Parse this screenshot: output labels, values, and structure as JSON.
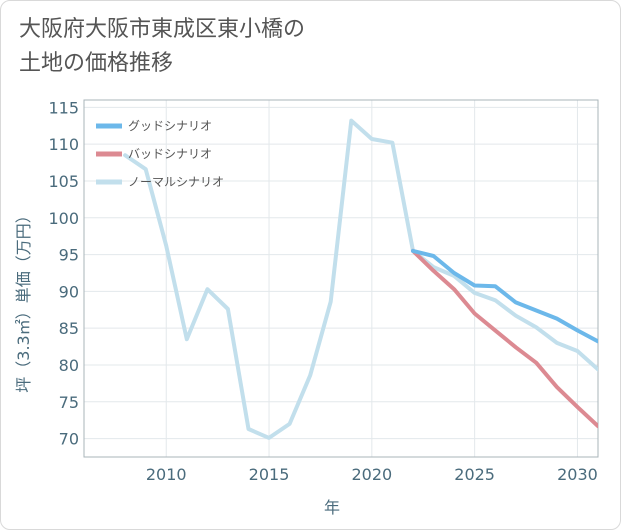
{
  "title_lines": [
    "大阪府大阪市東成区東小橋の",
    "土地の価格推移"
  ],
  "chart_data": {
    "type": "line",
    "title": "大阪府大阪市東成区東小橋の土地の価格推移",
    "xlabel": "年",
    "ylabel": "坪（3.3㎡）単価（万円）",
    "xlim": [
      2006,
      2031
    ],
    "ylim": [
      67.5,
      116
    ],
    "xticks": [
      2010,
      2015,
      2020,
      2025,
      2030
    ],
    "yticks": [
      70,
      75,
      80,
      85,
      90,
      95,
      100,
      105,
      110,
      115
    ],
    "grid": true,
    "legend_position": "top-left",
    "series": [
      {
        "name": "グッドシナリオ",
        "color": "#6cb8ea",
        "x": [
          2022,
          2023,
          2024,
          2025,
          2026,
          2027,
          2028,
          2029,
          2030,
          2031
        ],
        "values": [
          95.5,
          94.8,
          92.5,
          90.8,
          90.7,
          88.5,
          87.4,
          86.3,
          84.7,
          83.2
        ]
      },
      {
        "name": "バッドシナリオ",
        "color": "#dc8a92",
        "x": [
          2022,
          2023,
          2024,
          2025,
          2026,
          2027,
          2028,
          2029,
          2030,
          2031
        ],
        "values": [
          95.5,
          92.8,
          90.3,
          87.0,
          84.7,
          82.4,
          80.3,
          77.0,
          74.3,
          71.7
        ]
      },
      {
        "name": "ノーマルシナリオ",
        "color": "#c2dfec",
        "x": [
          2008,
          2009,
          2010,
          2011,
          2012,
          2013,
          2014,
          2015,
          2016,
          2017,
          2018,
          2019,
          2020,
          2021,
          2022,
          2023,
          2024,
          2025,
          2026,
          2027,
          2028,
          2029,
          2030,
          2031
        ],
        "values": [
          108.5,
          106.6,
          96.2,
          83.5,
          90.3,
          87.6,
          71.3,
          70.1,
          72.0,
          78.6,
          88.6,
          113.2,
          110.7,
          110.2,
          95.5,
          93.3,
          92.1,
          89.8,
          88.8,
          86.7,
          85.1,
          83.0,
          81.9,
          79.4
        ]
      }
    ]
  }
}
